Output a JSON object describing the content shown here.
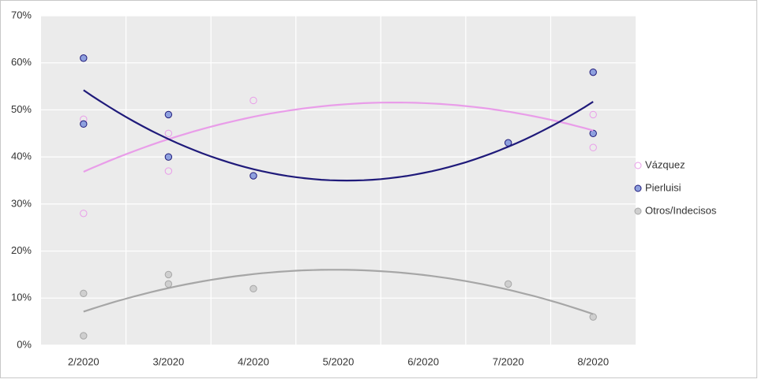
{
  "chart_data": {
    "type": "scatter",
    "categories": [
      "2/2020",
      "3/2020",
      "4/2020",
      "5/2020",
      "6/2020",
      "7/2020",
      "8/2020"
    ],
    "ylim": [
      0,
      70
    ],
    "yticks": [
      {
        "value": 0,
        "label": "0%"
      },
      {
        "value": 10,
        "label": "10%"
      },
      {
        "value": 20,
        "label": "20%"
      },
      {
        "value": 30,
        "label": "30%"
      },
      {
        "value": 40,
        "label": "40%"
      },
      {
        "value": 50,
        "label": "50%"
      },
      {
        "value": 60,
        "label": "60%"
      },
      {
        "value": 70,
        "label": "70%"
      }
    ],
    "grid": true,
    "trendline": "polynomial",
    "legend": "right",
    "series": [
      {
        "name": "Vázquez",
        "color": "#e99de9",
        "filled": false,
        "x": [
          "2/2020",
          "2/2020",
          "3/2020",
          "3/2020",
          "4/2020",
          "8/2020",
          "8/2020"
        ],
        "values": [
          48,
          28,
          45,
          37,
          52,
          49,
          42
        ]
      },
      {
        "name": "Pierluisi",
        "color": "#1f1a7a",
        "fill": "#8ea0de",
        "filled": true,
        "x": [
          "2/2020",
          "2/2020",
          "3/2020",
          "3/2020",
          "4/2020",
          "7/2020",
          "8/2020",
          "8/2020"
        ],
        "values": [
          61,
          47,
          49,
          40,
          36,
          43,
          58,
          45
        ]
      },
      {
        "name": "Otros/Indecisos",
        "color": "#a6a6a6",
        "fill": "#cfcfcf",
        "filled": true,
        "x": [
          "2/2020",
          "2/2020",
          "3/2020",
          "3/2020",
          "4/2020",
          "7/2020",
          "8/2020"
        ],
        "values": [
          11,
          2,
          15,
          13,
          12,
          13,
          6
        ]
      }
    ]
  }
}
